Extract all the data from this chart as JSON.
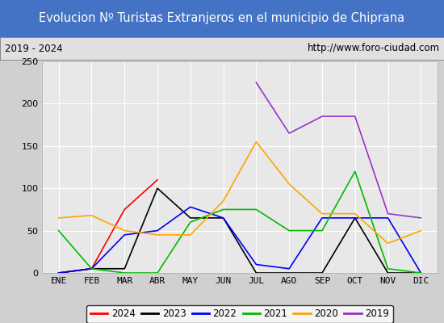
{
  "title": "Evolucion Nº Turistas Extranjeros en el municipio de Chiprana",
  "subtitle_left": "2019 - 2024",
  "subtitle_right": "http://www.foro-ciudad.com",
  "months": [
    "ENE",
    "FEB",
    "MAR",
    "ABR",
    "MAY",
    "JUN",
    "JUL",
    "AGO",
    "SEP",
    "OCT",
    "NOV",
    "DIC"
  ],
  "ylim": [
    0,
    250
  ],
  "yticks": [
    0,
    50,
    100,
    150,
    200,
    250
  ],
  "series": {
    "2024": {
      "color": "#ff0000",
      "values": [
        0,
        5,
        75,
        110,
        null,
        null,
        null,
        null,
        null,
        null,
        null,
        null
      ]
    },
    "2023": {
      "color": "#000000",
      "values": [
        0,
        5,
        5,
        100,
        65,
        65,
        0,
        0,
        0,
        65,
        0,
        0
      ]
    },
    "2022": {
      "color": "#0000ff",
      "values": [
        0,
        5,
        45,
        50,
        78,
        65,
        10,
        5,
        65,
        65,
        65,
        0
      ]
    },
    "2021": {
      "color": "#00bb00",
      "values": [
        50,
        5,
        0,
        0,
        60,
        75,
        75,
        50,
        50,
        120,
        5,
        0
      ]
    },
    "2020": {
      "color": "#ffa500",
      "values": [
        65,
        68,
        50,
        45,
        45,
        85,
        155,
        105,
        70,
        70,
        35,
        50
      ]
    },
    "2019": {
      "color": "#9933cc",
      "values": [
        null,
        null,
        null,
        null,
        null,
        null,
        225,
        165,
        185,
        185,
        70,
        65
      ]
    }
  },
  "title_bg": "#4472c4",
  "title_color": "#ffffff",
  "plot_bg": "#e8e8e8",
  "grid_color": "#ffffff",
  "subtitle_bg": "#e0e0e0",
  "fig_bg": "#d0d0d0"
}
